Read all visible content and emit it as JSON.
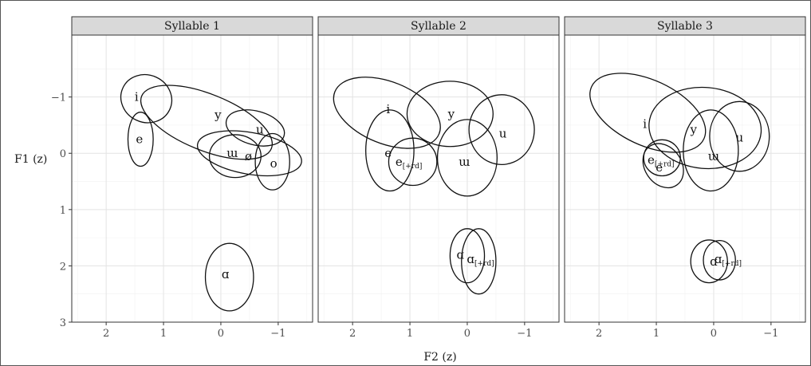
{
  "chart_data": {
    "type": "scatter",
    "xlabel": "F2 (z)",
    "ylabel": "F1 (z)",
    "xlim": [
      2.6,
      -1.6
    ],
    "ylim": [
      -2.1,
      3.0
    ],
    "x_reversed": true,
    "y_reversed": true,
    "x_ticks": [
      2,
      1,
      0,
      -1
    ],
    "x_tick_labels": [
      "2",
      "1",
      "0",
      "−1"
    ],
    "y_ticks": [
      -1,
      0,
      1,
      2,
      3
    ],
    "y_tick_labels": [
      "−1",
      "0",
      "1",
      "2",
      "3"
    ],
    "grid": true,
    "legend": "none",
    "panels": [
      {
        "title": "Syllable 1",
        "ellipses": [
          {
            "label": "i",
            "sub": "",
            "cx": 1.3,
            "cy": -0.97,
            "rx": 0.45,
            "ry": 0.42,
            "angle": 25,
            "lx": 1.47,
            "ly": -1.0
          },
          {
            "label": "e",
            "sub": "",
            "cx": 1.4,
            "cy": -0.25,
            "rx": 0.22,
            "ry": 0.48,
            "angle": 0,
            "lx": 1.42,
            "ly": -0.25
          },
          {
            "label": "y",
            "sub": "",
            "cx": 0.25,
            "cy": -0.55,
            "rx": 1.22,
            "ry": 0.5,
            "angle": 22,
            "lx": 0.05,
            "ly": -0.68
          },
          {
            "label": "u",
            "sub": "",
            "cx": -0.6,
            "cy": -0.45,
            "rx": 0.52,
            "ry": 0.3,
            "angle": 15,
            "lx": -0.68,
            "ly": -0.42
          },
          {
            "label": "ɯ",
            "sub": "",
            "cx": -0.25,
            "cy": 0.05,
            "rx": 0.45,
            "ry": 0.38,
            "angle": 0,
            "lx": -0.2,
            "ly": 0.0
          },
          {
            "label": "ø",
            "sub": "",
            "cx": -0.5,
            "cy": 0.0,
            "rx": 0.92,
            "ry": 0.37,
            "angle": 10,
            "lx": -0.48,
            "ly": 0.05
          },
          {
            "label": "o",
            "sub": "",
            "cx": -0.9,
            "cy": 0.15,
            "rx": 0.3,
            "ry": 0.5,
            "angle": 0,
            "lx": -0.92,
            "ly": 0.18
          },
          {
            "label": "ɑ",
            "sub": "",
            "cx": -0.15,
            "cy": 2.2,
            "rx": 0.42,
            "ry": 0.6,
            "angle": 0,
            "lx": -0.08,
            "ly": 2.15
          }
        ]
      },
      {
        "title": "Syllable 2",
        "ellipses": [
          {
            "label": "i",
            "sub": "",
            "cx": 1.4,
            "cy": -0.72,
            "rx": 0.98,
            "ry": 0.55,
            "angle": 22,
            "lx": 1.38,
            "ly": -0.78
          },
          {
            "label": "e",
            "sub": "",
            "cx": 1.35,
            "cy": -0.05,
            "rx": 0.42,
            "ry": 0.72,
            "angle": 0,
            "lx": 1.38,
            "ly": 0.0
          },
          {
            "label": "e",
            "sub": "[+rd]",
            "cx": 0.95,
            "cy": 0.15,
            "rx": 0.42,
            "ry": 0.42,
            "angle": 0,
            "lx": 1.02,
            "ly": 0.15
          },
          {
            "label": "y",
            "sub": "",
            "cx": 0.3,
            "cy": -0.7,
            "rx": 0.75,
            "ry": 0.58,
            "angle": 0,
            "lx": 0.28,
            "ly": -0.7
          },
          {
            "label": "ɯ",
            "sub": "",
            "cx": 0.0,
            "cy": 0.08,
            "rx": 0.52,
            "ry": 0.68,
            "angle": 0,
            "lx": 0.05,
            "ly": 0.15
          },
          {
            "label": "u",
            "sub": "",
            "cx": -0.6,
            "cy": -0.42,
            "rx": 0.57,
            "ry": 0.62,
            "angle": 0,
            "lx": -0.62,
            "ly": -0.35
          },
          {
            "label": "ɑ",
            "sub": "",
            "cx": 0.0,
            "cy": 1.82,
            "rx": 0.3,
            "ry": 0.48,
            "angle": 0,
            "lx": 0.12,
            "ly": 1.8
          },
          {
            "label": "ɑ",
            "sub": "[+rd]",
            "cx": -0.2,
            "cy": 1.92,
            "rx": 0.3,
            "ry": 0.58,
            "angle": 0,
            "lx": -0.23,
            "ly": 1.88
          }
        ]
      },
      {
        "title": "Syllable 3",
        "ellipses": [
          {
            "label": "i",
            "sub": "",
            "cx": 1.15,
            "cy": -0.72,
            "rx": 1.08,
            "ry": 0.58,
            "angle": 25,
            "lx": 1.2,
            "ly": -0.52
          },
          {
            "label": "y",
            "sub": "",
            "cx": 0.15,
            "cy": -0.45,
            "rx": 0.98,
            "ry": 0.72,
            "angle": 5,
            "lx": 0.35,
            "ly": -0.42
          },
          {
            "label": "e",
            "sub": "",
            "cx": 0.88,
            "cy": 0.22,
            "rx": 0.32,
            "ry": 0.42,
            "angle": -35,
            "lx": 0.95,
            "ly": 0.25
          },
          {
            "label": "e",
            "sub": "[+rd]",
            "cx": 0.9,
            "cy": 0.08,
            "rx": 0.32,
            "ry": 0.32,
            "angle": 0,
            "lx": 0.92,
            "ly": 0.12
          },
          {
            "label": "ɯ",
            "sub": "",
            "cx": 0.05,
            "cy": -0.05,
            "rx": 0.48,
            "ry": 0.72,
            "angle": 0,
            "lx": 0.0,
            "ly": 0.05
          },
          {
            "label": "u",
            "sub": "",
            "cx": -0.45,
            "cy": -0.3,
            "rx": 0.52,
            "ry": 0.62,
            "angle": 0,
            "lx": -0.45,
            "ly": -0.28
          },
          {
            "label": "ɑ",
            "sub": "",
            "cx": 0.08,
            "cy": 1.92,
            "rx": 0.32,
            "ry": 0.38,
            "angle": 0,
            "lx": 0.0,
            "ly": 1.92
          },
          {
            "label": "ɑ",
            "sub": "[+rd]",
            "cx": -0.1,
            "cy": 1.9,
            "rx": 0.28,
            "ry": 0.35,
            "angle": 0,
            "lx": -0.25,
            "ly": 1.88
          }
        ]
      }
    ]
  }
}
